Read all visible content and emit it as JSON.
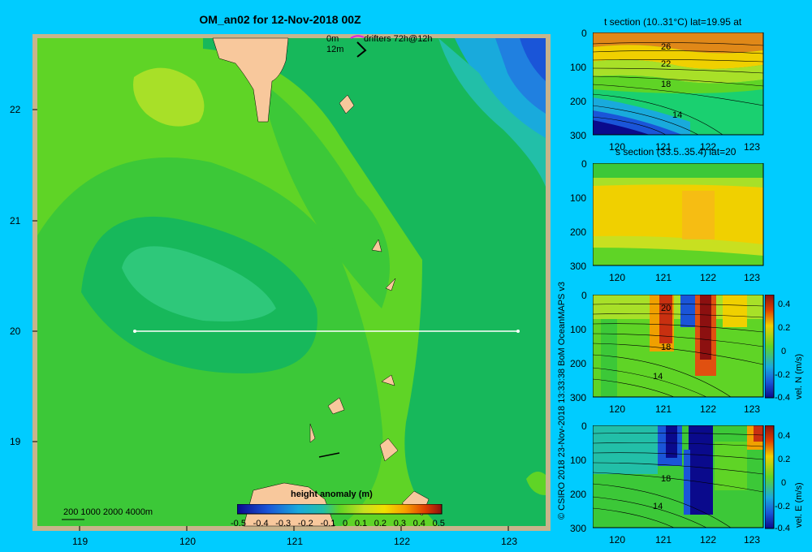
{
  "main": {
    "title": "OM_an02 for 12-Nov-2018 00Z",
    "legend_0m": "0m",
    "legend_12m": "12m",
    "drifters": "drifters 72h@12h",
    "depth_scale": "200 1000 2000 4000m",
    "colorbar_title": "height anomaly (m)",
    "colorbar_ticks": [
      "-0.5",
      "-0.4",
      "-0.3",
      "-0.2",
      "-0.1",
      "0",
      "0.1",
      "0.2",
      "0.3",
      "0.4",
      "0.5"
    ],
    "lat_ticks": [
      "22",
      "21",
      "20",
      "19"
    ],
    "lon_ticks": [
      "119",
      "120",
      "121",
      "122",
      "123"
    ]
  },
  "panels": {
    "t_title": "t section (10..31°C) lat=19.95 at",
    "s_title": "s section (33.5..35.4) lat=20",
    "n_label": "vel. N (m/s)",
    "e_label": "vel. E (m/s)",
    "depth_ticks": [
      "0",
      "100",
      "200",
      "300"
    ],
    "lon_ticks": [
      "120",
      "121",
      "122",
      "123"
    ],
    "vel_ticks": [
      "0.4",
      "0.2",
      "0",
      "-0.2",
      "-0.4"
    ],
    "t_contours": [
      "26",
      "22",
      "18",
      "14"
    ],
    "n_contours": [
      "20",
      "18",
      "14"
    ],
    "e_contours": [
      "18",
      "14"
    ]
  },
  "credit": "© CSIRO 2018   23-Nov-2018 13:33:38 BoM OceanMAPS v3",
  "colors": {
    "background": "#00ccff",
    "land": "#f8c89c",
    "shelf": "#c8b48c"
  }
}
